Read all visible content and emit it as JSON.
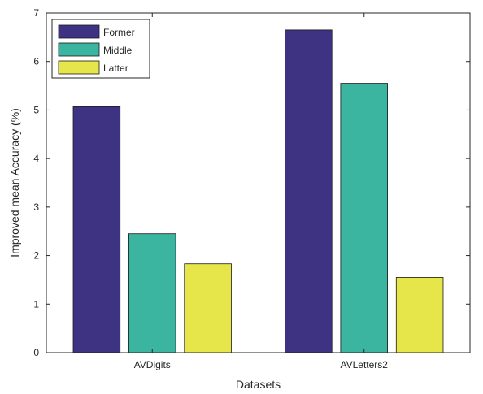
{
  "chart_data": {
    "type": "bar",
    "xlabel": "Datasets",
    "ylabel": "Improved mean Accuracy (%)",
    "ylim": [
      0,
      7
    ],
    "yticks": [
      0,
      1,
      2,
      3,
      4,
      5,
      6,
      7
    ],
    "categories": [
      "AVDigits",
      "AVLetters2"
    ],
    "series": [
      {
        "name": "Former",
        "values": [
          5.07,
          6.65
        ],
        "color": "#3e3382"
      },
      {
        "name": "Middle",
        "values": [
          2.45,
          5.55
        ],
        "color": "#3bb59f"
      },
      {
        "name": "Latter",
        "values": [
          1.83,
          1.55
        ],
        "color": "#e6e54a"
      }
    ],
    "legend": {
      "position": "top-left"
    },
    "grid": false
  }
}
